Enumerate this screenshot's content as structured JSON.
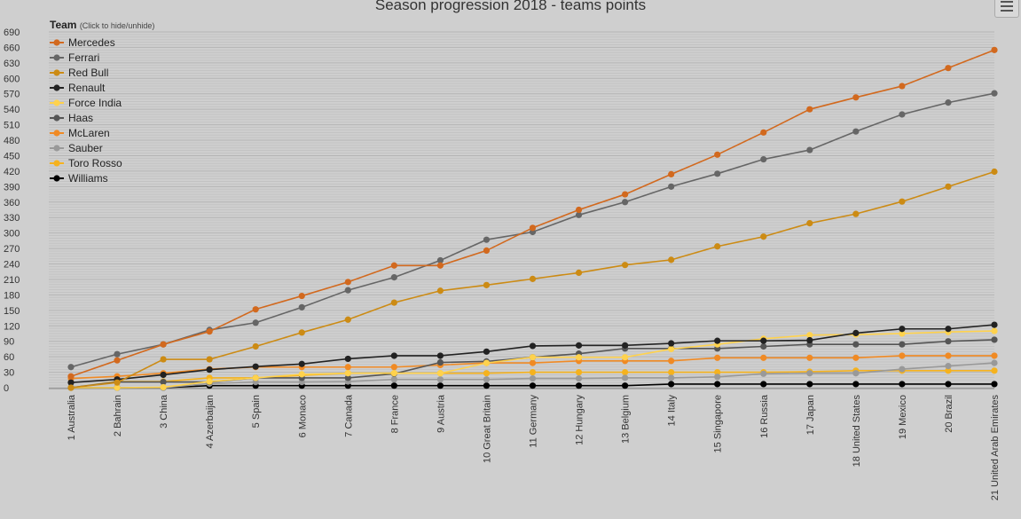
{
  "chart_data": {
    "type": "line",
    "title": "Season progression 2018 - teams points",
    "legend": {
      "title": "Team",
      "hint": "(Click to hide/unhide)",
      "placement": "top-left"
    },
    "ylim": [
      0,
      690
    ],
    "yticks": [
      0,
      30,
      60,
      90,
      120,
      150,
      180,
      210,
      240,
      270,
      300,
      330,
      360,
      390,
      420,
      450,
      480,
      510,
      540,
      570,
      600,
      630,
      660,
      690
    ],
    "grid": true,
    "categories": [
      "1 Australia",
      "2 Bahrain",
      "3 China",
      "4 Azerbaijan",
      "5 Spain",
      "6 Monaco",
      "7 Canada",
      "8 France",
      "9 Austria",
      "10 Great Britain",
      "11 Germany",
      "12 Hungary",
      "13 Belgium",
      "14 Italy",
      "15 Singapore",
      "16 Russia",
      "17 Japan",
      "18 United States",
      "19 Mexico",
      "20 Brazil",
      "21 United Arab Emirates"
    ],
    "series": [
      {
        "name": "Mercedes",
        "color": "#d2691e",
        "values": [
          22,
          53,
          84,
          109,
          152,
          178,
          205,
          237,
          237,
          266,
          310,
          345,
          375,
          414,
          452,
          495,
          540,
          563,
          585,
          620,
          655
        ]
      },
      {
        "name": "Ferrari",
        "color": "#666666",
        "values": [
          40,
          65,
          84,
          112,
          126,
          156,
          189,
          214,
          247,
          287,
          302,
          335,
          360,
          390,
          415,
          443,
          461,
          497,
          530,
          553,
          571
        ]
      },
      {
        "name": "Red Bull",
        "color": "#cc8b14",
        "values": [
          0,
          10,
          55,
          55,
          80,
          107,
          132,
          165,
          188,
          199,
          211,
          223,
          238,
          248,
          274,
          293,
          319,
          337,
          361,
          390,
          419
        ]
      },
      {
        "name": "Renault",
        "color": "#222222",
        "values": [
          10,
          16,
          25,
          35,
          41,
          46,
          56,
          62,
          62,
          70,
          81,
          82,
          82,
          86,
          91,
          91,
          92,
          106,
          114,
          114,
          122
        ]
      },
      {
        "name": "Force India",
        "color": "#ffd24d",
        "values": [
          0,
          0,
          1,
          12,
          19,
          26,
          28,
          28,
          28,
          48,
          59,
          59,
          59,
          75,
          84,
          95,
          102,
          103,
          105,
          108,
          110
        ]
      },
      {
        "name": "Haas",
        "color": "#555555",
        "values": [
          0,
          11,
          11,
          11,
          19,
          19,
          19,
          27,
          49,
          51,
          59,
          66,
          76,
          76,
          76,
          80,
          84,
          84,
          84,
          90,
          93
        ]
      },
      {
        "name": "McLaren",
        "color": "#f08a24",
        "values": [
          18,
          22,
          28,
          36,
          40,
          40,
          40,
          40,
          44,
          48,
          48,
          52,
          52,
          52,
          58,
          58,
          58,
          58,
          62,
          62,
          62
        ]
      },
      {
        "name": "Sauber",
        "color": "#999999",
        "values": [
          0,
          0,
          0,
          8,
          11,
          11,
          12,
          16,
          16,
          16,
          18,
          18,
          19,
          19,
          21,
          27,
          28,
          28,
          36,
          42,
          48
        ]
      },
      {
        "name": "Toro Rosso",
        "color": "#f5b21e",
        "values": [
          0,
          12,
          12,
          19,
          19,
          24,
          28,
          28,
          28,
          28,
          30,
          30,
          30,
          30,
          30,
          30,
          31,
          33,
          33,
          33,
          33
        ]
      },
      {
        "name": "Williams",
        "color": "#000000",
        "values": [
          0,
          0,
          0,
          4,
          4,
          4,
          4,
          4,
          4,
          4,
          4,
          4,
          4,
          7,
          7,
          7,
          7,
          7,
          7,
          7,
          7
        ]
      }
    ]
  }
}
